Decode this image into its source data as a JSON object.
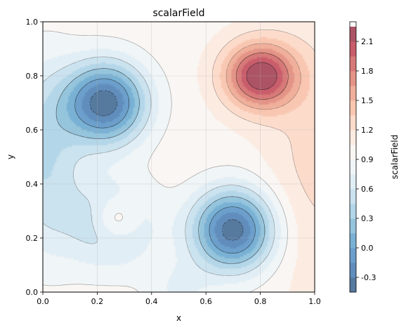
{
  "chart_data": {
    "type": "heatmap",
    "title": "scalarField",
    "xlabel": "x",
    "ylabel": "y",
    "xlim": [
      0.0,
      1.0
    ],
    "ylim": [
      0.0,
      1.0
    ],
    "x_ticks": [
      "0.0",
      "0.2",
      "0.4",
      "0.6",
      "0.8",
      "1.0"
    ],
    "y_ticks": [
      "0.0",
      "0.2",
      "0.4",
      "0.6",
      "0.8",
      "1.0"
    ],
    "grid": true,
    "colormap": "RdBu_r",
    "colorbar": {
      "label": "scalarField",
      "range": [
        -0.45,
        2.3
      ],
      "ticks": [
        "-0.3",
        "0.0",
        "0.3",
        "0.6",
        "0.9",
        "1.2",
        "1.5",
        "1.8",
        "2.1"
      ]
    },
    "extrema": [
      {
        "type": "max",
        "x": 0.8,
        "y": 0.8,
        "value": 2.25
      },
      {
        "type": "min",
        "x": 0.23,
        "y": 0.7,
        "value": -0.4
      },
      {
        "type": "min",
        "x": 0.7,
        "y": 0.23,
        "value": -0.4
      },
      {
        "type": "local-max",
        "x": 0.27,
        "y": 0.27,
        "value": 1.1
      }
    ]
  }
}
